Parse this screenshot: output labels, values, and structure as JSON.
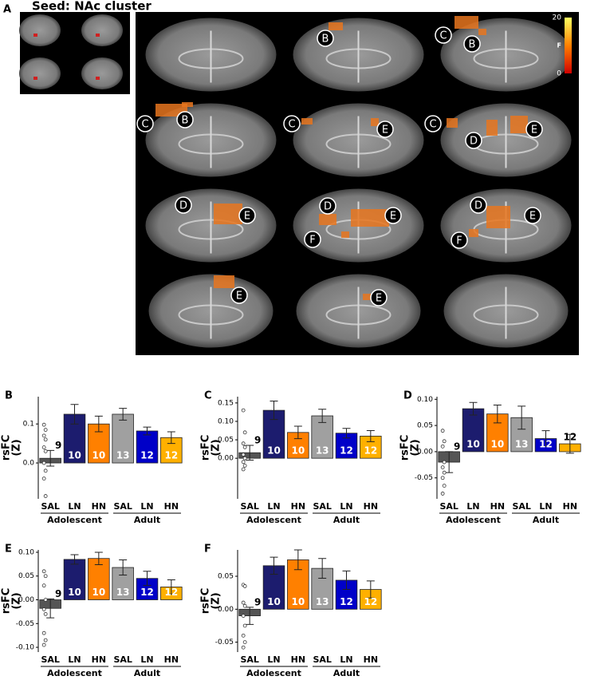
{
  "panel_a": {
    "label": "A",
    "title": "Seed: NAc cluster",
    "colorbar": {
      "label": "F",
      "ticks": [
        20,
        0
      ]
    },
    "region_labels": [
      [],
      [
        "B"
      ],
      [
        "C",
        "B"
      ],
      [
        "C",
        "B"
      ],
      [
        "C",
        "E"
      ],
      [
        "C",
        "D",
        "E"
      ],
      [
        "D",
        "E"
      ],
      [
        "D",
        "E",
        "F"
      ],
      [
        "D",
        "E",
        "F"
      ],
      [
        "E"
      ],
      [
        "E"
      ],
      []
    ]
  },
  "chart_data": [
    {
      "type": "bar",
      "panel": "B",
      "ylabel": [
        "rsFC",
        "(Z)"
      ],
      "categories": [
        "SAL",
        "LN",
        "HN",
        "SAL",
        "LN",
        "HN"
      ],
      "groups": [
        "Adolescent",
        "Adult"
      ],
      "colors": [
        "#555555",
        "#1c1c6e",
        "#ff8000",
        "#a0a0a0",
        "#0000c8",
        "#ffb000"
      ],
      "values": [
        0.012,
        0.125,
        0.1,
        0.125,
        0.082,
        0.065
      ],
      "errors": [
        0.02,
        0.025,
        0.02,
        0.015,
        0.01,
        0.015
      ],
      "n": [
        9,
        10,
        10,
        13,
        12,
        12
      ],
      "points": [
        0.098,
        0.085,
        0.07,
        0.06,
        0.04,
        0.03,
        0.0,
        -0.02,
        -0.04,
        -0.085
      ],
      "ylim": [
        -0.092,
        0.17
      ],
      "yticks": [
        {
          "value": 0.1,
          "label": "0.1"
        },
        {
          "value": 0,
          "label": "0.0"
        }
      ]
    },
    {
      "type": "bar",
      "panel": "C",
      "ylabel": [
        "rsFC",
        "(Z)"
      ],
      "categories": [
        "SAL",
        "LN",
        "HN",
        "SAL",
        "LN",
        "HN"
      ],
      "groups": [
        "Adolescent",
        "Adult"
      ],
      "colors": [
        "#555555",
        "#1c1c6e",
        "#ff8000",
        "#a0a0a0",
        "#0000c8",
        "#ffb000"
      ],
      "values": [
        0.015,
        0.13,
        0.07,
        0.115,
        0.068,
        0.06
      ],
      "errors": [
        0.02,
        0.025,
        0.017,
        0.018,
        0.013,
        0.015
      ],
      "n": [
        9,
        10,
        10,
        13,
        12,
        12
      ],
      "points": [
        0.13,
        0.07,
        0.04,
        0.03,
        0.01,
        0.0,
        -0.01,
        -0.02,
        -0.03
      ],
      "ylim": [
        -0.11,
        0.167
      ],
      "yticks": [
        0.15,
        {
          "value": 0.1,
          "label": "0.10"
        },
        0.05,
        {
          "value": 0,
          "label": "0.00"
        }
      ]
    },
    {
      "type": "bar",
      "panel": "D",
      "ylabel": [
        "rsFC",
        "(Z)"
      ],
      "categories": [
        "SAL",
        "LN",
        "HN",
        "SAL",
        "LN",
        "HN"
      ],
      "groups": [
        "Adolescent",
        "Adult"
      ],
      "colors": [
        "#555555",
        "#1c1c6e",
        "#ff8000",
        "#a0a0a0",
        "#0000c8",
        "#ffb000"
      ],
      "values": [
        -0.02,
        0.082,
        0.072,
        0.065,
        0.025,
        0.015
      ],
      "errors": [
        0.02,
        0.012,
        0.017,
        0.022,
        0.015,
        0.018
      ],
      "n": [
        9,
        10,
        10,
        13,
        12,
        12
      ],
      "points": [
        0.04,
        0.02,
        0.01,
        -0.02,
        -0.03,
        -0.04,
        -0.05,
        -0.065,
        -0.08
      ],
      "ylim": [
        -0.09,
        0.105
      ],
      "yticks": [
        {
          "value": 0.1,
          "label": "0.10"
        },
        0.05,
        {
          "value": 0,
          "label": "0.00"
        },
        -0.05
      ]
    },
    {
      "type": "bar",
      "panel": "E",
      "ylabel": [
        "rsFC",
        "(Z)"
      ],
      "categories": [
        "SAL",
        "LN",
        "HN",
        "SAL",
        "LN",
        "HN"
      ],
      "groups": [
        "Adolescent",
        "Adult"
      ],
      "colors": [
        "#555555",
        "#1c1c6e",
        "#ff8000",
        "#a0a0a0",
        "#0000c8",
        "#ffb000"
      ],
      "values": [
        -0.018,
        0.085,
        0.087,
        0.068,
        0.045,
        0.027
      ],
      "errors": [
        0.02,
        0.01,
        0.013,
        0.016,
        0.015,
        0.015
      ],
      "n": [
        9,
        10,
        10,
        13,
        12,
        12
      ],
      "points": [
        0.06,
        0.05,
        0.03,
        0.0,
        -0.02,
        -0.03,
        -0.07,
        -0.085,
        -0.095
      ],
      "ylim": [
        -0.11,
        0.105
      ],
      "yticks": [
        {
          "value": 0.1,
          "label": "0.10"
        },
        0.05,
        {
          "value": 0,
          "label": "0.00"
        },
        -0.05,
        {
          "value": -0.1,
          "label": "-0.10"
        }
      ]
    },
    {
      "type": "bar",
      "panel": "F",
      "ylabel": [
        "rsFC",
        "(Z)"
      ],
      "categories": [
        "SAL",
        "LN",
        "HN",
        "SAL",
        "LN",
        "HN"
      ],
      "groups": [
        "Adolescent",
        "Adult"
      ],
      "colors": [
        "#555555",
        "#1c1c6e",
        "#ff8000",
        "#a0a0a0",
        "#0000c8",
        "#ffb000"
      ],
      "values": [
        -0.01,
        0.066,
        0.075,
        0.062,
        0.044,
        0.03
      ],
      "errors": [
        0.013,
        0.013,
        0.015,
        0.015,
        0.014,
        0.013
      ],
      "n": [
        9,
        10,
        10,
        13,
        12,
        12
      ],
      "points": [
        0.037,
        0.035,
        0.01,
        0.005,
        -0.01,
        -0.025,
        -0.04,
        -0.05,
        -0.058
      ],
      "ylim": [
        -0.065,
        0.09
      ],
      "yticks": [
        0.05,
        {
          "value": 0,
          "label": "0.00"
        },
        -0.05
      ]
    }
  ]
}
